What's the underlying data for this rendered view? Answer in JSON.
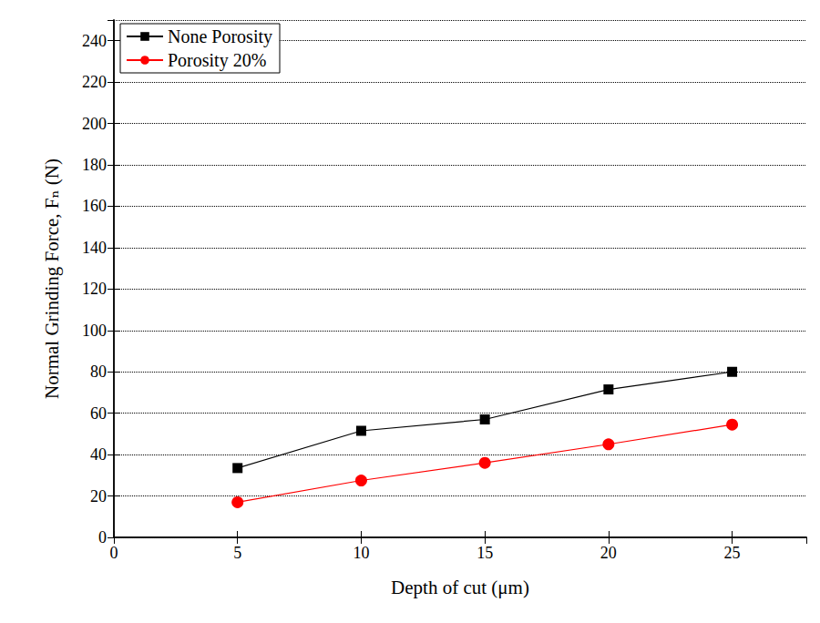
{
  "chart_data": {
    "type": "line",
    "x_label": "Depth of cut (μm)",
    "y_label": "Normal Grinding Force, Fₙ (N)",
    "x": [
      5,
      10,
      15,
      20,
      25
    ],
    "series": [
      {
        "name": "None Porosity",
        "color": "#000000",
        "marker": "square",
        "line_style": "solid",
        "values": [
          33.5,
          51.5,
          57,
          71.5,
          80
        ]
      },
      {
        "name": "Porosity 20%",
        "color": "#ff0000",
        "marker": "circle",
        "line_style": "solid",
        "values": [
          17,
          27.5,
          36,
          45,
          54.5
        ]
      }
    ],
    "xlim": [
      0,
      28
    ],
    "xticks": [
      0,
      5,
      10,
      15,
      20,
      25
    ],
    "ylim": [
      0,
      250
    ],
    "yticks": [
      0,
      20,
      40,
      60,
      80,
      100,
      120,
      140,
      160,
      180,
      200,
      220,
      240
    ],
    "grid": true,
    "legend": "upper left"
  }
}
